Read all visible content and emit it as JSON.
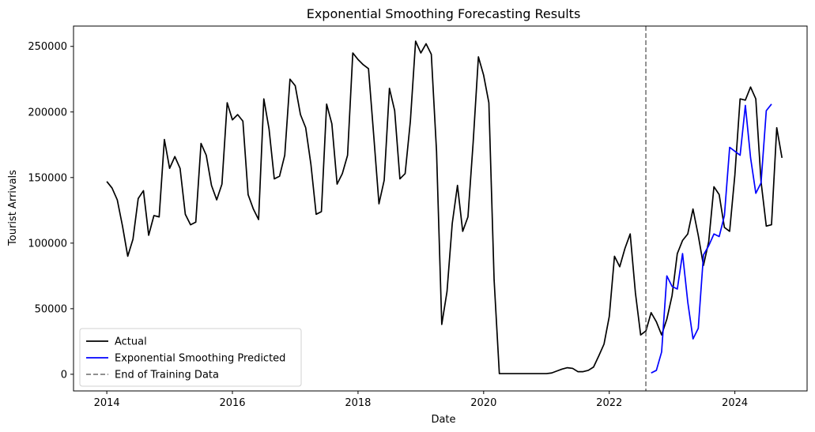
{
  "chart_data": {
    "type": "line",
    "title": "Exponential Smoothing Forecasting Results",
    "xlabel": "Date",
    "ylabel": "Tourist Arrivals",
    "xlim": [
      2013.47,
      2025.15
    ],
    "ylim": [
      -12700,
      265500
    ],
    "x_ticks": [
      2014,
      2016,
      2018,
      2020,
      2022,
      2024
    ],
    "x_tick_labels": [
      "2014",
      "2016",
      "2018",
      "2020",
      "2022",
      "2024"
    ],
    "y_ticks": [
      0,
      50000,
      100000,
      150000,
      200000,
      250000
    ],
    "y_tick_labels": [
      "0",
      "50000",
      "100000",
      "150000",
      "200000",
      "250000"
    ],
    "grid": false,
    "legend": {
      "placement": "lower-left"
    },
    "vline": {
      "x": 2022.583,
      "name": "End of Training Data",
      "color": "#808080",
      "style": "dashed"
    },
    "series": [
      {
        "name": "Actual",
        "color": "#000000",
        "start_x": 2014.0,
        "step": 0.0833333,
        "values": [
          147000,
          142000,
          133000,
          113000,
          90000,
          103000,
          134000,
          140000,
          106000,
          121000,
          120000,
          179000,
          157000,
          166000,
          157000,
          122000,
          114000,
          116000,
          176000,
          167000,
          144000,
          133000,
          145000,
          207000,
          194000,
          198000,
          193000,
          137000,
          126000,
          118000,
          210000,
          187000,
          149000,
          151000,
          167000,
          225000,
          220000,
          198000,
          188000,
          160000,
          122000,
          124000,
          206000,
          191000,
          145000,
          153000,
          167000,
          245000,
          240000,
          236000,
          233000,
          182000,
          130000,
          148000,
          218000,
          201000,
          149000,
          153000,
          193000,
          254000,
          245000,
          252000,
          244000,
          170000,
          38000,
          63000,
          115000,
          144000,
          109000,
          120000,
          177000,
          242000,
          228000,
          207000,
          72000,
          500,
          500,
          500,
          500,
          500,
          500,
          500,
          500,
          500,
          500,
          1000,
          2500,
          4000,
          5000,
          4500,
          2000,
          2000,
          3000,
          5500,
          14000,
          23000,
          44000,
          90000,
          82000,
          96000,
          107000,
          62000,
          30000,
          33000,
          47000,
          40000,
          30000,
          42000,
          60000,
          92000,
          102000,
          107000,
          126000,
          106000,
          83000,
          101000,
          143000,
          137000,
          112000,
          109000,
          152000,
          210000,
          209000,
          219000,
          210000,
          147000,
          113000,
          114000,
          188000,
          165000
        ]
      },
      {
        "name": "Exponential Smoothing Predicted",
        "color": "#0000ff",
        "start_x": 2022.667,
        "step": 0.0833333,
        "values": [
          1000,
          3000,
          17000,
          75000,
          67000,
          65000,
          92000,
          55000,
          27000,
          35000,
          91000,
          98000,
          107000,
          105000,
          121000,
          173000,
          170000,
          167000,
          205000,
          165000,
          138000,
          146000,
          201000,
          206000
        ]
      }
    ]
  }
}
